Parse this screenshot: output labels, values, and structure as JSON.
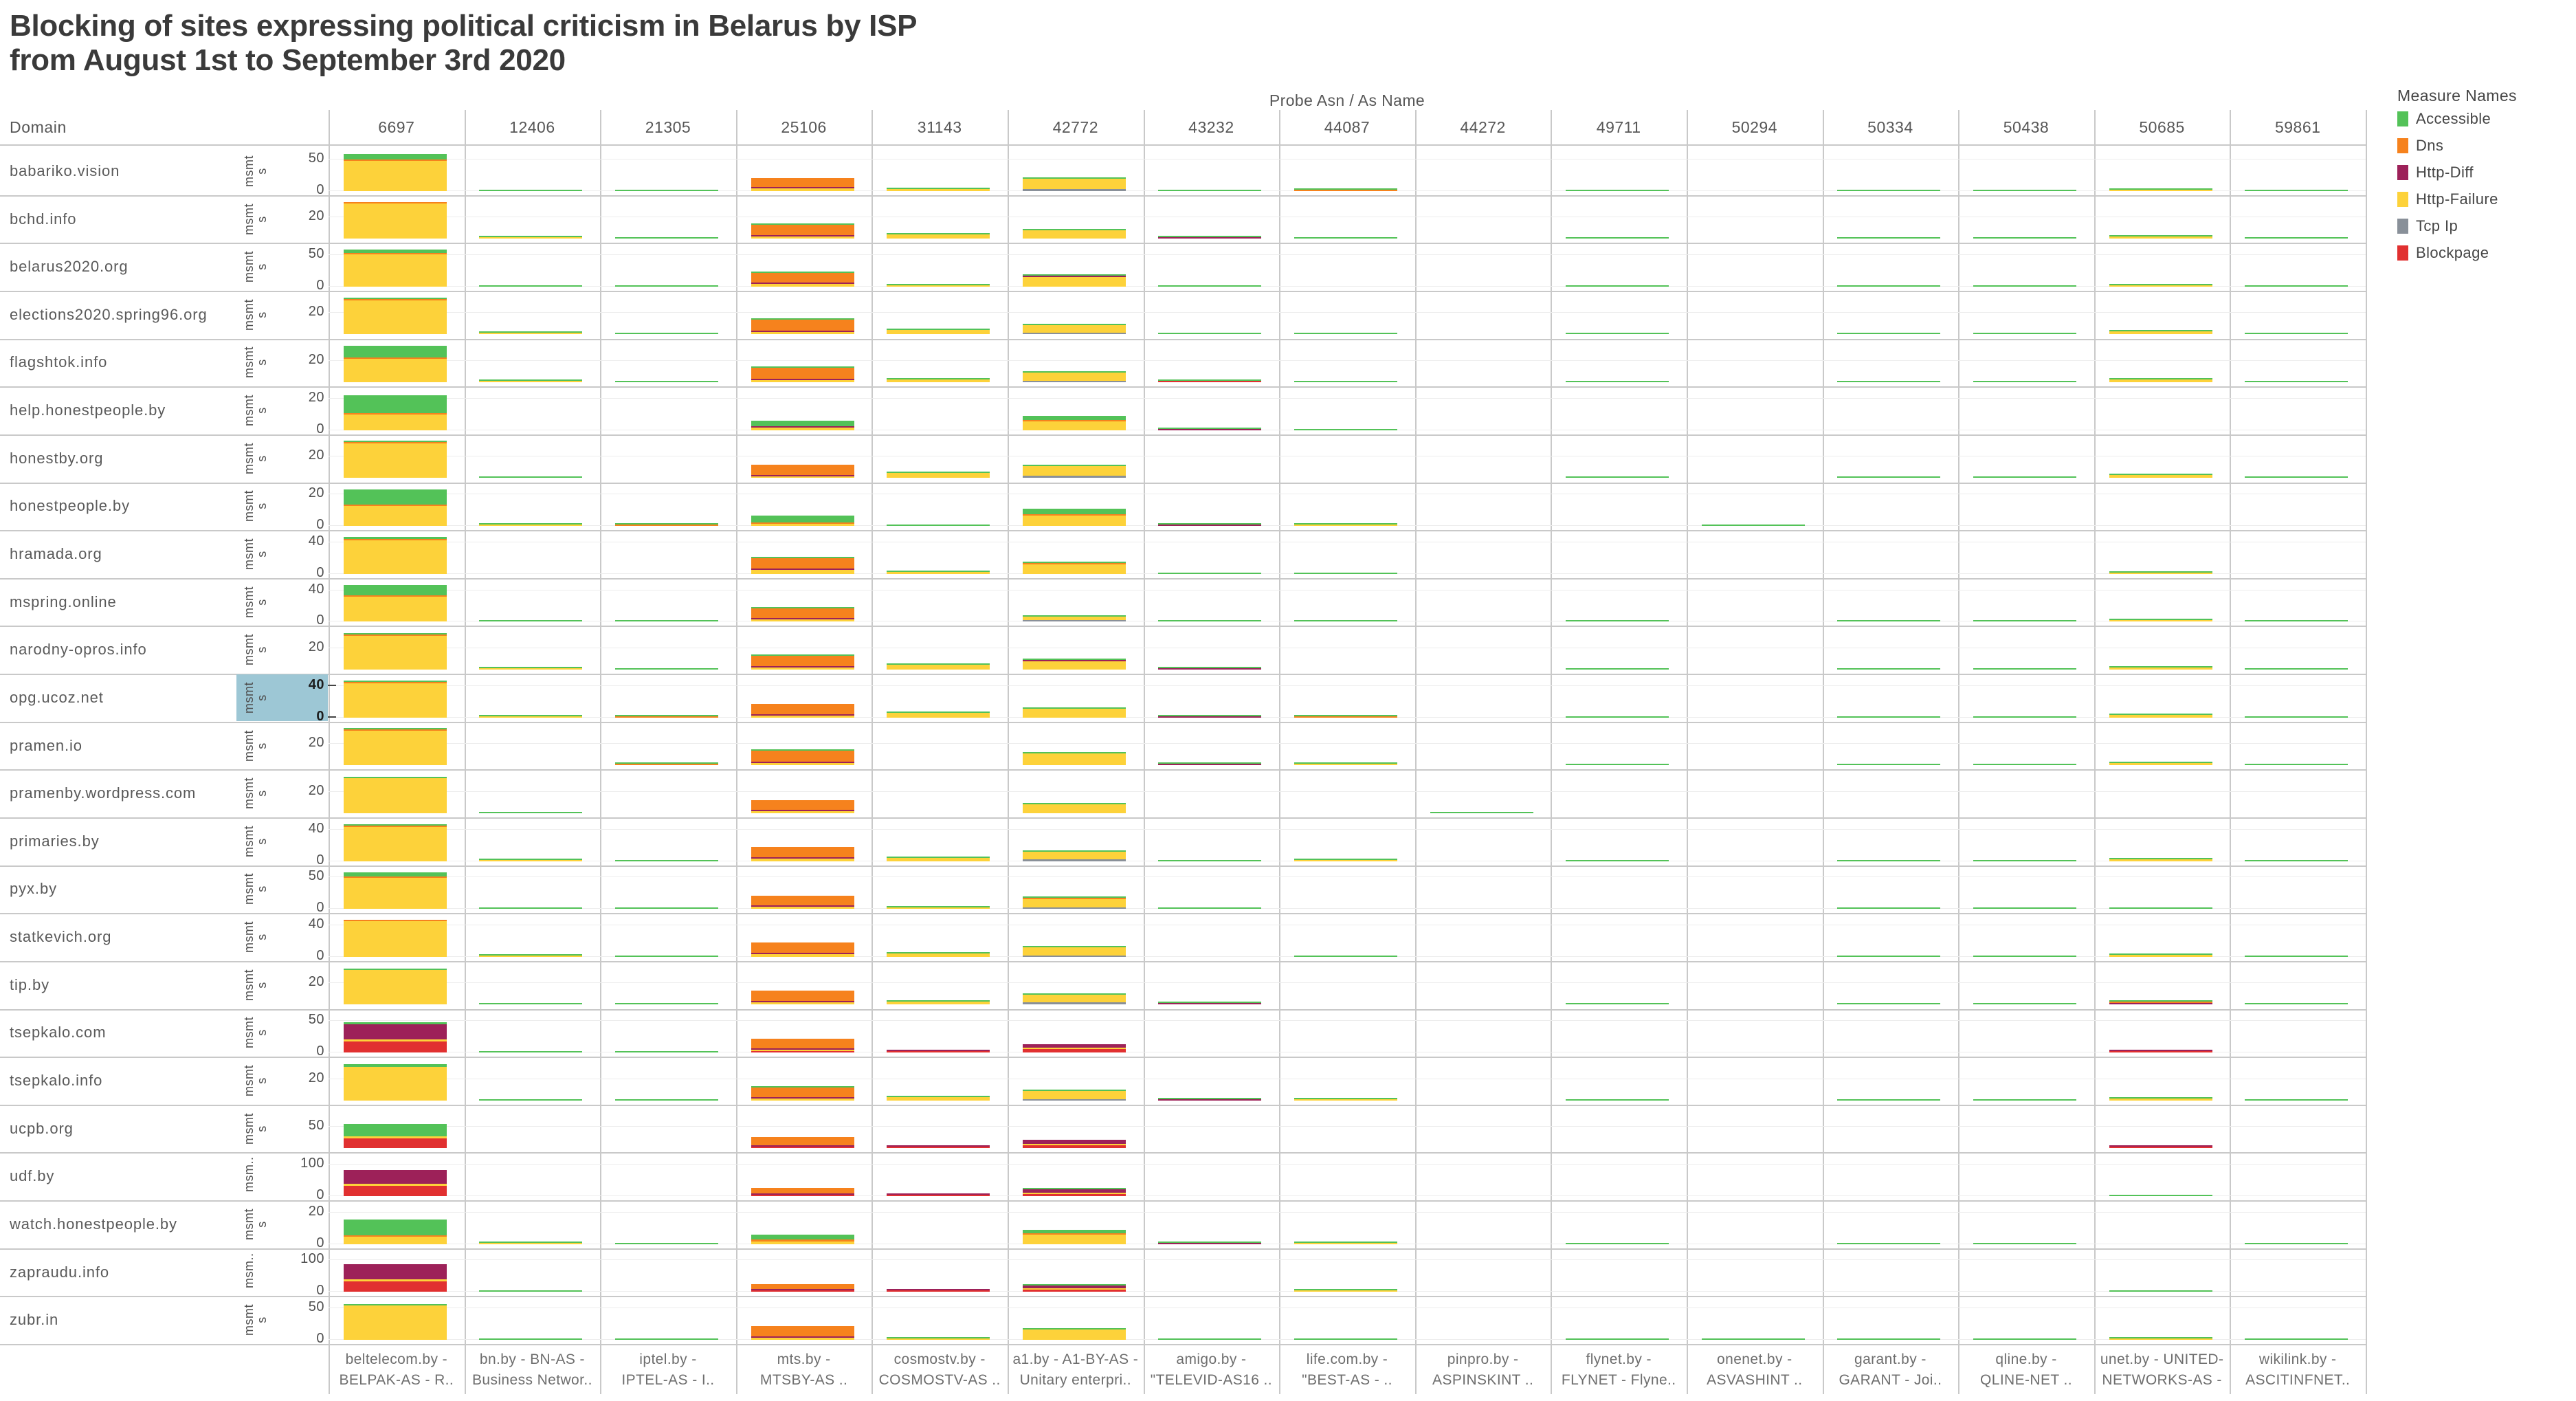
{
  "title": {
    "line1": "Blocking of sites expressing political criticism in Belarus by ISP",
    "line2": "from August 1st to September 3rd 2020"
  },
  "header": {
    "columns_title": "Probe Asn  /  As Name",
    "domain_label": "Domain"
  },
  "legend": {
    "title": "Measure Names",
    "items": [
      {
        "key": "a",
        "label": "Accessible",
        "color": "#53c258"
      },
      {
        "key": "d",
        "label": "Dns",
        "color": "#f6821d"
      },
      {
        "key": "h",
        "label": "Http-Diff",
        "color": "#9d2159"
      },
      {
        "key": "f",
        "label": "Http-Failure",
        "color": "#fdd23a"
      },
      {
        "key": "t",
        "label": "Tcp Ip",
        "color": "#899099"
      },
      {
        "key": "b",
        "label": "Blockpage",
        "color": "#e13030"
      }
    ]
  },
  "chart_data": {
    "type": "small-multiples stacked bar (Tableau-style grid: Domain rows x Probe ASN columns)",
    "ylabel": "msmts",
    "x_period": "2020-08-01 to 2020-09-03",
    "selection_note": "y-axis of row opg.ucoz.net is selected (blue highlight)",
    "columns": [
      {
        "asn": "6697",
        "as_name_line1": "beltelecom.by -",
        "as_name_line2": "BELPAK-AS - R.."
      },
      {
        "asn": "12406",
        "as_name_line1": "bn.by - BN-AS -",
        "as_name_line2": "Business Networ.."
      },
      {
        "asn": "21305",
        "as_name_line1": "iptel.by -",
        "as_name_line2": "IPTEL-AS - I.."
      },
      {
        "asn": "25106",
        "as_name_line1": "mts.by -",
        "as_name_line2": "MTSBY-AS .."
      },
      {
        "asn": "31143",
        "as_name_line1": "cosmostv.by -",
        "as_name_line2": "COSMOSTV-AS .."
      },
      {
        "asn": "42772",
        "as_name_line1": "a1.by - A1-BY-AS -",
        "as_name_line2": "Unitary enterpri.."
      },
      {
        "asn": "43232",
        "as_name_line1": "amigo.by -",
        "as_name_line2": "\"TELEVID-AS16 .."
      },
      {
        "asn": "44087",
        "as_name_line1": "life.com.by -",
        "as_name_line2": "\"BEST-AS - .."
      },
      {
        "asn": "44272",
        "as_name_line1": "pinpro.by -",
        "as_name_line2": "ASPINSKINT .."
      },
      {
        "asn": "49711",
        "as_name_line1": "flynet.by -",
        "as_name_line2": "FLYNET - Flyne.."
      },
      {
        "asn": "50294",
        "as_name_line1": "onenet.by -",
        "as_name_line2": "ASVASHINT .."
      },
      {
        "asn": "50334",
        "as_name_line1": "garant.by -",
        "as_name_line2": "GARANT - Joi.."
      },
      {
        "asn": "50438",
        "as_name_line1": "qline.by -",
        "as_name_line2": "QLINE-NET .."
      },
      {
        "asn": "50685",
        "as_name_line1": "unet.by - UNITED-",
        "as_name_line2": "NETWORKS-AS - .."
      },
      {
        "asn": "59861",
        "as_name_line1": "wikilink.by -",
        "as_name_line2": "ASCITINFNET.."
      }
    ],
    "segment_key": "per cell: space-separated segments top-to-bottom, letter = measure (a=Accessible d=Dns h=Http-Diff f=Http-Failure t=Tcp Ip b=Blockpage), number = msmts as % of row scale",
    "rows": [
      {
        "domain": "babariko.vision",
        "axis_label": "msmt s",
        "ticks": [
          "50",
          "0"
        ],
        "selected": false,
        "cells": [
          "a14 d2 f76",
          "a2",
          "a1",
          "d22 h2 f7",
          "a2 f4",
          "a2 f26 t4",
          "a2",
          "a2 d1",
          "",
          "a1",
          "",
          "a1",
          "a1",
          "a2 f3",
          "a1"
        ]
      },
      {
        "domain": "bchd.info",
        "axis_label": "msmt s",
        "ticks": [
          "20"
        ],
        "selected": false,
        "cells": [
          "d2 f89",
          "a2 f2",
          "a1",
          "a3 d25 h2 f6",
          "a2 f10",
          "a3 f22",
          "a2 h1",
          "a1",
          "",
          "a1",
          "",
          "a1",
          "a1",
          "a3 f6",
          "a1"
        ]
      },
      {
        "domain": "belarus2020.org",
        "axis_label": "msmt s",
        "ticks": [
          "50",
          "0"
        ],
        "selected": false,
        "cells": [
          "a8 d2 f82",
          "a2",
          "a1",
          "a2 d25 h2 f6",
          "a2 f4",
          "a2 h2 f24",
          "a1",
          "",
          "",
          "a1",
          "",
          "a1",
          "a1",
          "a2 f2",
          "a1"
        ]
      },
      {
        "domain": "elections2020.spring96.org",
        "axis_label": "msmt s",
        "ticks": [
          "20"
        ],
        "selected": false,
        "cells": [
          "a3 d2 f86",
          "a2 f2",
          "a1",
          "a2 d28 h2 f6",
          "a3 f12",
          "a2 f20 t4",
          "a1",
          "a3",
          "",
          "a1",
          "",
          "a1",
          "a1",
          "a3 f7",
          "a1"
        ]
      },
      {
        "domain": "flagshtok.info",
        "axis_label": "msmt s",
        "ticks": [
          "20"
        ],
        "selected": false,
        "cells": [
          "a28 d2 f60",
          "a2 f2",
          "a1",
          "a3 d28 h2 f5",
          "a3 f8",
          "a2 f22 t3",
          "a2 b1",
          "a2",
          "",
          "a1",
          "",
          "a1",
          "a1",
          "a3 f7",
          "a1"
        ]
      },
      {
        "domain": "help.honestpeople.by",
        "axis_label": "msmt s",
        "ticks": [
          "20",
          "0"
        ],
        "selected": false,
        "cells": [
          "a45 d2 f40",
          "",
          "",
          "a14 h1 f6",
          "",
          "a10 d2 f22",
          "a2 h1",
          "a2",
          "",
          "",
          "",
          "",
          "",
          "",
          ""
        ]
      },
      {
        "domain": "honestby.org",
        "axis_label": "msmt s",
        "ticks": [
          "20"
        ],
        "selected": false,
        "cells": [
          "a3 d2 f87",
          "a1",
          "",
          "d25 h2 f5",
          "a2 f12",
          "a2 f24 t6",
          "",
          "",
          "",
          "a1",
          "",
          "a1",
          "a1",
          "a2 f8",
          "a1"
        ]
      },
      {
        "domain": "honestpeople.by",
        "axis_label": "msmt s",
        "ticks": [
          "20",
          "0"
        ],
        "selected": false,
        "cells": [
          "a38 d2 f50",
          "a2 f2",
          "a1 d1",
          "a16 d1 f6",
          "a2",
          "a14 d2 f26",
          "a2 h1",
          "a2 f1",
          "",
          "",
          "a1",
          "",
          "",
          "",
          ""
        ]
      },
      {
        "domain": "hramada.org",
        "axis_label": "msmt s",
        "ticks": [
          "40",
          "0"
        ],
        "selected": false,
        "cells": [
          "a4 d2 f85",
          "",
          "",
          "a2 d26 h2 f10",
          "a2 f5",
          "a2 d1 f24",
          "a1",
          "a1",
          "",
          "",
          "",
          "",
          "",
          "a2 f2",
          ""
        ]
      },
      {
        "domain": "mspring.online",
        "axis_label": "msmt s",
        "ticks": [
          "40",
          "0"
        ],
        "selected": false,
        "cells": [
          "a25 d2 f64",
          "a1",
          "a1",
          "a2 d24 h2 f6",
          "",
          "a2 f10 t3",
          "a1",
          "a1",
          "",
          "a1",
          "",
          "a1",
          "a1",
          "a2 f2",
          "a1"
        ]
      },
      {
        "domain": "narodny-opros.info",
        "axis_label": "msmt s",
        "ticks": [
          "20"
        ],
        "selected": false,
        "cells": [
          "a4 d2 f85",
          "a2 f2",
          "a1",
          "a2 d26 h2 f6",
          "a2 f12",
          "a2 h2 f20",
          "a2 h1",
          "",
          "",
          "a1",
          "",
          "a1",
          "a1",
          "a2 f5",
          "a1"
        ]
      },
      {
        "domain": "opg.ucoz.net",
        "axis_label": "msmt s",
        "ticks": [
          "40",
          "0"
        ],
        "selected": true,
        "cells": [
          "a3 d2 f86",
          "a2 f2",
          "a1 d1",
          "d26 h2 f5",
          "a2 f12",
          "a2 f22",
          "a2 h1",
          "a2 d1",
          "",
          "a1",
          "",
          "a1",
          "a1",
          "a2 f6",
          "a1"
        ]
      },
      {
        "domain": "pramen.io",
        "axis_label": "msmt s",
        "ticks": [
          "20"
        ],
        "selected": false,
        "cells": [
          "a3 d2 f87",
          "",
          "a1 d1",
          "a2 d28 h2 f6",
          "",
          "a2 f30",
          "a2 h1",
          "a2 f1",
          "",
          "a1",
          "",
          "a1",
          "a1",
          "a2 f6",
          "a1"
        ]
      },
      {
        "domain": "pramenby.wordpress.com",
        "axis_label": "msmt s",
        "ticks": [
          "20"
        ],
        "selected": false,
        "cells": [
          "a3 f88",
          "a2",
          "",
          "d24 h1 f5",
          "",
          "a2 f22",
          "",
          "",
          "a1",
          "",
          "",
          "",
          "",
          "",
          ""
        ]
      },
      {
        "domain": "primaries.by",
        "axis_label": "msmt s",
        "ticks": [
          "40",
          "0"
        ],
        "selected": false,
        "cells": [
          "a3 d2 f86",
          "a2 f2",
          "a1",
          "d26 h2 f6",
          "a2 f8",
          "a2 f20 t4",
          "a2",
          "a2 f1",
          "",
          "a1",
          "",
          "a1",
          "a1",
          "a2 f4",
          "a1"
        ]
      },
      {
        "domain": "pyx.by",
        "axis_label": "msmt s",
        "ticks": [
          "50",
          "0"
        ],
        "selected": false,
        "cells": [
          "a10 d2 f78",
          "a1",
          "a1",
          "d25 h1 f5",
          "a2 f3",
          "a1 d2 f22 t2",
          "a2",
          "",
          "",
          "",
          "",
          "a1",
          "a1",
          "a1",
          ""
        ]
      },
      {
        "domain": "statkevich.org",
        "axis_label": "msmt s",
        "ticks": [
          "40",
          "0"
        ],
        "selected": false,
        "cells": [
          "d2 f89",
          "a2 f2",
          "a1",
          "d26 h2 f6",
          "a2 f8",
          "a2 f20 t3",
          "",
          "a1",
          "",
          "",
          "",
          "a1",
          "a1",
          "a2 f4",
          "a1"
        ]
      },
      {
        "domain": "tip.by",
        "axis_label": "msmt s",
        "ticks": [
          "20"
        ],
        "selected": false,
        "cells": [
          "a3 f88",
          "a2",
          "a1",
          "d26 h2 f6",
          "a2 f8",
          "a2 f20 t6",
          "a2 h1",
          "",
          "",
          "a1",
          "",
          "a1",
          "a1",
          "a1 d1 h1",
          "a1"
        ]
      },
      {
        "domain": "tsepkalo.com",
        "axis_label": "msmt s",
        "ticks": [
          "50",
          "0"
        ],
        "selected": false,
        "cells": [
          "a5 h38 f6 b28",
          "a1",
          "a1",
          "d24 h2 f4 b2",
          "h1 b3",
          "h10 f2 b8",
          "",
          "",
          "",
          "",
          "",
          "",
          "",
          "h1 b1",
          ""
        ]
      },
      {
        "domain": "tsepkalo.info",
        "axis_label": "msmt s",
        "ticks": [
          "20"
        ],
        "selected": false,
        "cells": [
          "a6 f85",
          "a2",
          "a1",
          "a2 d25 h2 f5",
          "a2 f8",
          "a2 f20 t2",
          "a2 h1",
          "a2 f1",
          "",
          "a1",
          "",
          "a1",
          "a1",
          "a2 f4",
          "a1"
        ]
      },
      {
        "domain": "ucpb.org",
        "axis_label": "msmt s",
        "ticks": [
          "50"
        ],
        "selected": false,
        "cells": [
          "a32 f5 b25",
          "",
          "",
          "d22 h1 b3",
          "h1 b3",
          "h10 f2 b8",
          "",
          "",
          "",
          "",
          "",
          "",
          "",
          "h1 b1",
          ""
        ]
      },
      {
        "domain": "udf.by",
        "axis_label": "msm..",
        "ticks": [
          "100",
          "0"
        ],
        "selected": false,
        "cells": [
          "h34 f6 b26",
          "",
          "",
          "d14 h2 b2",
          "h1 b2",
          "a1 h8 f3 b6",
          "",
          "",
          "",
          "",
          "",
          "",
          "",
          "a1",
          ""
        ]
      },
      {
        "domain": "watch.honestpeople.by",
        "axis_label": "msmt s",
        "ticks": [
          "20",
          "0"
        ],
        "selected": false,
        "cells": [
          "a40 d2 f18",
          "a2 f2",
          "a1",
          "a12 d6 f6",
          "",
          "a8 d1 f24",
          "a2 h1",
          "a2 f1",
          "",
          "a1",
          "",
          "a1",
          "a1",
          "",
          "a1"
        ]
      },
      {
        "domain": "zapraudu.info",
        "axis_label": "msm..",
        "ticks": [
          "100",
          "0"
        ],
        "selected": false,
        "cells": [
          "h38 f6 b26",
          "a1",
          "",
          "d12 h2 b2",
          "h1 b2",
          "a2 h6 f3 b6",
          "",
          "a1 f1",
          "",
          "",
          "",
          "",
          "",
          "a1",
          ""
        ]
      },
      {
        "domain": "zubr.in",
        "axis_label": "msmt s",
        "ticks": [
          "50",
          "0"
        ],
        "selected": false,
        "cells": [
          "a4 f87",
          "a2",
          "a1",
          "d25 h2 f6",
          "a2 f3",
          "a2 f26",
          "a1",
          "a2",
          "",
          "a1",
          "a1",
          "a1",
          "a1",
          "a2 f3",
          "a1"
        ]
      }
    ]
  }
}
